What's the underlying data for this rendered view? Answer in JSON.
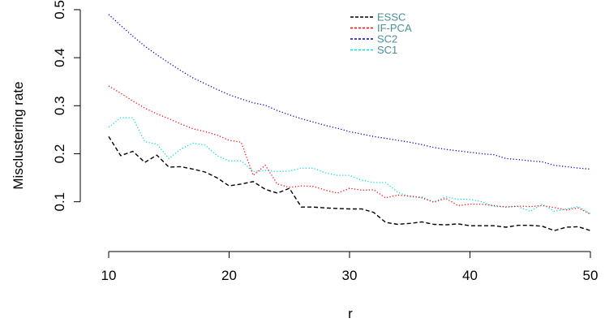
{
  "chart_data": {
    "type": "line",
    "title": "",
    "xlabel": "r",
    "ylabel": "Misclustering  rate",
    "xlim": [
      10,
      50
    ],
    "ylim": [
      0.02,
      0.51
    ],
    "xticks": [
      10,
      20,
      30,
      40,
      50
    ],
    "yticks": [
      0.1,
      0.2,
      0.3,
      0.4,
      0.5
    ],
    "xtick_labels": [
      "10",
      "20",
      "30",
      "40",
      "50"
    ],
    "ytick_labels": [
      "0.1",
      "0.2",
      "0.3",
      "0.4",
      "0.5"
    ],
    "grid": false,
    "legend_position": "top-right",
    "x": [
      10,
      11,
      12,
      13,
      14,
      15,
      16,
      17,
      18,
      19,
      20,
      21,
      22,
      23,
      24,
      25,
      26,
      27,
      28,
      29,
      30,
      31,
      32,
      33,
      34,
      35,
      36,
      37,
      38,
      39,
      40,
      41,
      42,
      43,
      44,
      45,
      46,
      47,
      48,
      49,
      50
    ],
    "series": [
      {
        "name": "ESSC",
        "color": "#000000",
        "dash": "dashed",
        "values": [
          0.236,
          0.196,
          0.205,
          0.182,
          0.197,
          0.172,
          0.173,
          0.168,
          0.162,
          0.15,
          0.133,
          0.137,
          0.142,
          0.126,
          0.118,
          0.128,
          0.089,
          0.089,
          0.087,
          0.086,
          0.085,
          0.085,
          0.078,
          0.057,
          0.053,
          0.055,
          0.058,
          0.053,
          0.052,
          0.054,
          0.05,
          0.05,
          0.05,
          0.047,
          0.051,
          0.051,
          0.049,
          0.04,
          0.047,
          0.048,
          0.04
        ]
      },
      {
        "name": "IF-PCA",
        "color": "#ff0000",
        "dash": "dotted",
        "values": [
          0.341,
          0.326,
          0.31,
          0.295,
          0.283,
          0.273,
          0.262,
          0.252,
          0.246,
          0.239,
          0.228,
          0.224,
          0.155,
          0.176,
          0.137,
          0.13,
          0.133,
          0.132,
          0.124,
          0.118,
          0.128,
          0.124,
          0.125,
          0.108,
          0.114,
          0.112,
          0.108,
          0.099,
          0.107,
          0.092,
          0.095,
          0.095,
          0.092,
          0.089,
          0.091,
          0.09,
          0.092,
          0.088,
          0.083,
          0.087,
          0.074
        ]
      },
      {
        "name": "SC2",
        "color": "#0000cc",
        "dash": "dotted",
        "values": [
          0.49,
          0.467,
          0.445,
          0.424,
          0.406,
          0.389,
          0.373,
          0.358,
          0.346,
          0.334,
          0.323,
          0.314,
          0.306,
          0.301,
          0.29,
          0.281,
          0.273,
          0.266,
          0.259,
          0.253,
          0.246,
          0.241,
          0.236,
          0.232,
          0.228,
          0.224,
          0.219,
          0.213,
          0.209,
          0.206,
          0.203,
          0.2,
          0.198,
          0.19,
          0.188,
          0.185,
          0.183,
          0.176,
          0.173,
          0.17,
          0.168
        ]
      },
      {
        "name": "SC1",
        "color": "#00dddd",
        "dash": "dotted",
        "values": [
          0.255,
          0.275,
          0.275,
          0.225,
          0.22,
          0.19,
          0.21,
          0.222,
          0.218,
          0.196,
          0.185,
          0.185,
          0.163,
          0.165,
          0.163,
          0.164,
          0.17,
          0.17,
          0.16,
          0.155,
          0.155,
          0.145,
          0.14,
          0.14,
          0.12,
          0.11,
          0.11,
          0.1,
          0.11,
          0.105,
          0.105,
          0.1,
          0.09,
          0.09,
          0.09,
          0.08,
          0.095,
          0.08,
          0.085,
          0.09,
          0.075
        ]
      }
    ]
  }
}
